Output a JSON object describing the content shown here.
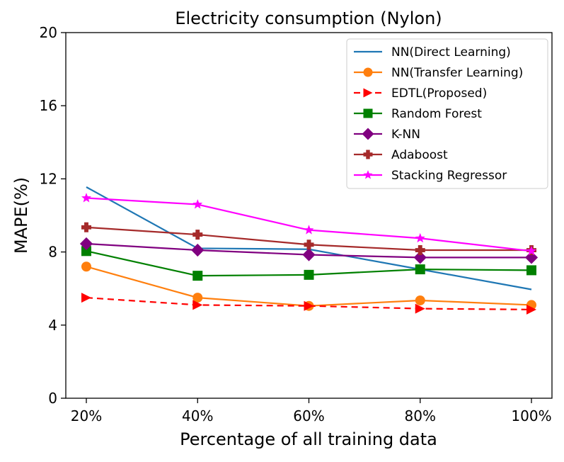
{
  "chart_data": {
    "type": "line",
    "title": "Electricity consumption (Nylon)",
    "xlabel": "Percentage of all training data",
    "ylabel": "MAPE(%)",
    "categories": [
      "20%",
      "40%",
      "60%",
      "80%",
      "100%"
    ],
    "ylim": [
      0,
      20
    ],
    "yticks": [
      0,
      4,
      8,
      12,
      16,
      20
    ],
    "legend_position": "top-right",
    "grid": false,
    "series": [
      {
        "name": "NN(Direct Learning)",
        "color": "#1f77b4",
        "marker": "none",
        "dashed": false,
        "values": [
          11.55,
          8.2,
          8.15,
          7.05,
          5.95
        ]
      },
      {
        "name": "NN(Transfer Learning)",
        "color": "#ff7f0e",
        "marker": "circle",
        "dashed": false,
        "values": [
          7.2,
          5.5,
          5.05,
          5.35,
          5.1
        ]
      },
      {
        "name": "EDTL(Proposed)",
        "color": "#ff0000",
        "marker": "triangle-right",
        "dashed": true,
        "values": [
          5.5,
          5.1,
          5.05,
          4.9,
          4.85
        ]
      },
      {
        "name": "Random Forest",
        "color": "#008000",
        "marker": "square",
        "dashed": false,
        "values": [
          8.05,
          6.7,
          6.75,
          7.05,
          7.0
        ]
      },
      {
        "name": "K-NN",
        "color": "#800080",
        "marker": "diamond",
        "dashed": false,
        "values": [
          8.45,
          8.1,
          7.85,
          7.7,
          7.7
        ]
      },
      {
        "name": "Adaboost",
        "color": "#a52a2a",
        "marker": "plus",
        "dashed": false,
        "values": [
          9.35,
          8.95,
          8.4,
          8.1,
          8.1
        ]
      },
      {
        "name": "Stacking Regressor",
        "color": "#ff00ff",
        "marker": "star",
        "dashed": false,
        "values": [
          10.95,
          10.6,
          9.2,
          8.75,
          8.05
        ]
      }
    ]
  }
}
